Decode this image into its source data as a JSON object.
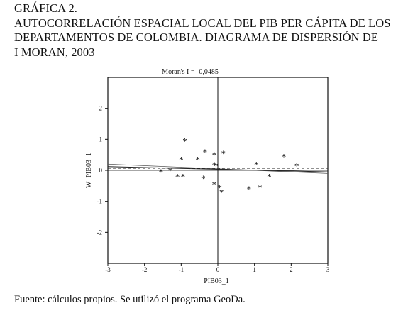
{
  "header": {
    "title_line1": "GRÁFICA 2.",
    "title_line2": "AUTOCORRELACIÓN ESPACIAL LOCAL DEL PIB PER CÁPITA DE LOS",
    "title_line3": "DEPARTAMENTOS DE COLOMBIA. DIAGRAMA DE DISPERSIÓN DE",
    "title_line4": "I MORAN, 2003"
  },
  "footer": {
    "source": "Fuente: cálculos propios. Se utilizó el programa GeoDa."
  },
  "chart_data": {
    "type": "scatter",
    "title": "Moran's I = -0,0485",
    "xlabel": "PIB03_1",
    "ylabel": "W_PIB03_1",
    "xlim": [
      -3,
      3
    ],
    "ylim": [
      -3,
      3
    ],
    "x_ticks": [
      -3,
      -2,
      -1,
      0,
      1,
      2,
      3
    ],
    "x_tick_labels": [
      "-3",
      "-2",
      "-1",
      "0",
      "1",
      "2",
      "3"
    ],
    "y_ticks": [
      -2,
      -1,
      0,
      1,
      2
    ],
    "y_tick_labels": [
      "-2",
      "-1",
      "0",
      "1",
      "2"
    ],
    "marker": "*",
    "grid": false,
    "points": [
      {
        "x": -1.55,
        "y": -0.05
      },
      {
        "x": -1.3,
        "y": 0.0
      },
      {
        "x": -1.1,
        "y": -0.2
      },
      {
        "x": -0.95,
        "y": -0.2
      },
      {
        "x": -1.0,
        "y": 0.35
      },
      {
        "x": -0.9,
        "y": 0.95
      },
      {
        "x": -0.55,
        "y": 0.35
      },
      {
        "x": -0.35,
        "y": 0.6
      },
      {
        "x": -0.4,
        "y": -0.25
      },
      {
        "x": -0.1,
        "y": 0.5
      },
      {
        "x": -0.1,
        "y": 0.2
      },
      {
        "x": -0.05,
        "y": 0.15
      },
      {
        "x": 0.15,
        "y": 0.55
      },
      {
        "x": -0.1,
        "y": -0.45
      },
      {
        "x": 0.05,
        "y": -0.55
      },
      {
        "x": 0.1,
        "y": -0.7
      },
      {
        "x": 0.85,
        "y": -0.6
      },
      {
        "x": 1.05,
        "y": 0.2
      },
      {
        "x": 1.15,
        "y": -0.55
      },
      {
        "x": 1.4,
        "y": -0.2
      },
      {
        "x": 1.8,
        "y": 0.45
      },
      {
        "x": 2.15,
        "y": 0.15
      }
    ],
    "lines": [
      {
        "style": "solid",
        "x": [
          -3,
          3
        ],
        "y": [
          0.2,
          -0.1
        ]
      },
      {
        "style": "solid",
        "x": [
          -3,
          3
        ],
        "y": [
          0.12,
          -0.05
        ]
      },
      {
        "style": "dashed",
        "x": [
          -3,
          3
        ],
        "y": [
          0.07,
          0.07
        ]
      }
    ],
    "reference_lines": {
      "x": 0,
      "y": 0
    }
  }
}
